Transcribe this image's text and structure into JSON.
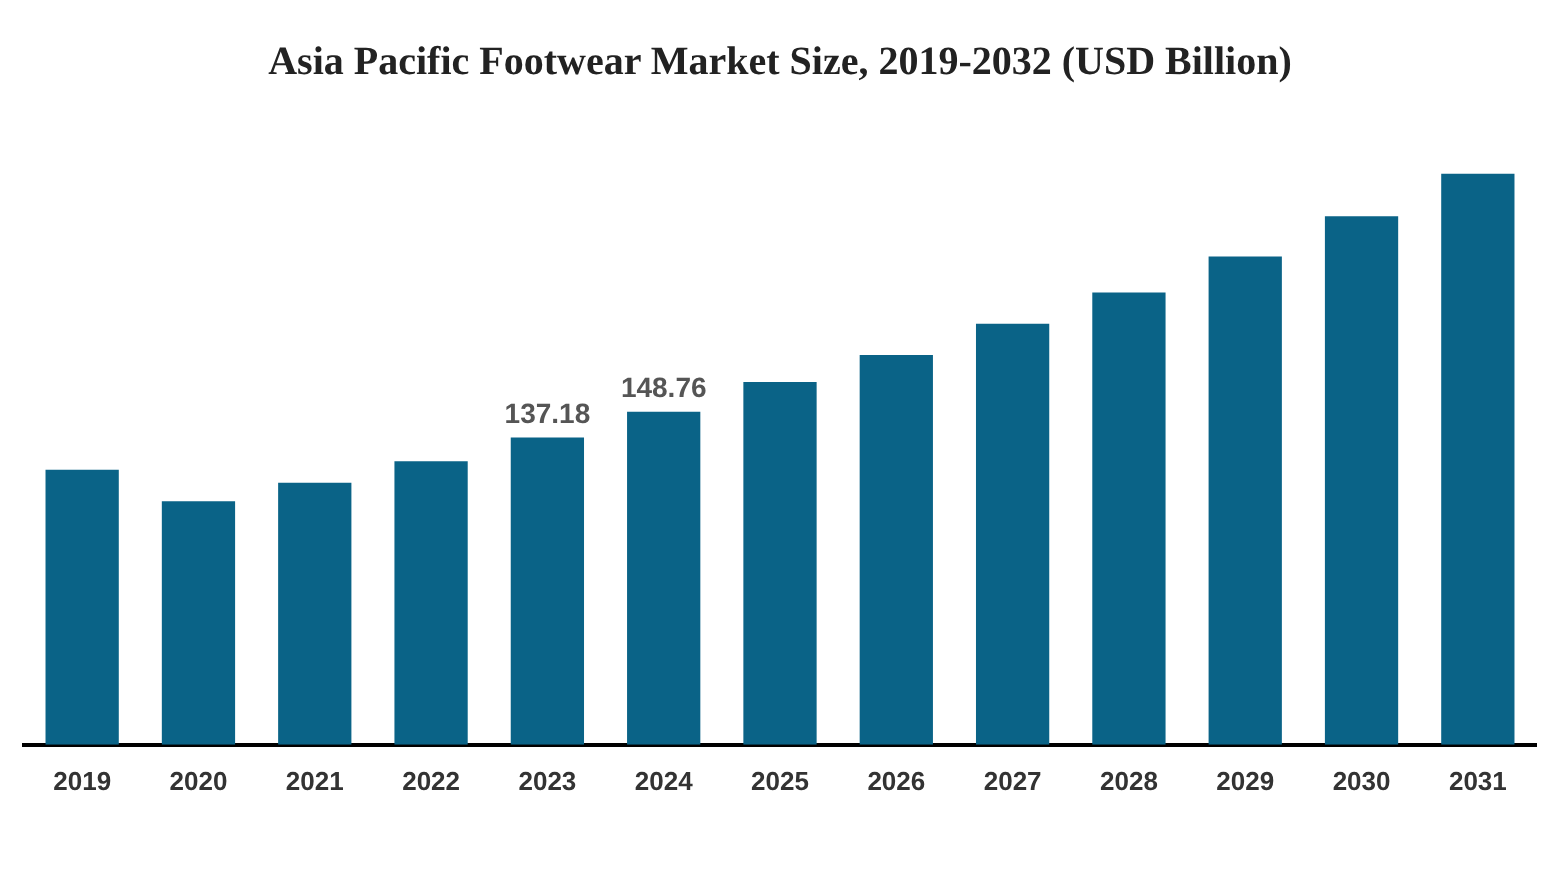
{
  "chart_data": {
    "type": "bar",
    "title": "Asia Pacific Footwear Market Size, 2019-2032 (USD Billion)",
    "categories": [
      "2019",
      "2020",
      "2021",
      "2022",
      "2023",
      "2024",
      "2025",
      "2026",
      "2027",
      "2028",
      "2029",
      "2030",
      "2031"
    ],
    "values": [
      122.8,
      108.7,
      117.0,
      126.6,
      137.18,
      148.76,
      162,
      174,
      188,
      202,
      218,
      236,
      255
    ],
    "value_labels": [
      null,
      null,
      null,
      null,
      "137.18",
      "148.76",
      null,
      null,
      null,
      null,
      null,
      null,
      null
    ],
    "color": "#0a6387",
    "grid": false
  }
}
